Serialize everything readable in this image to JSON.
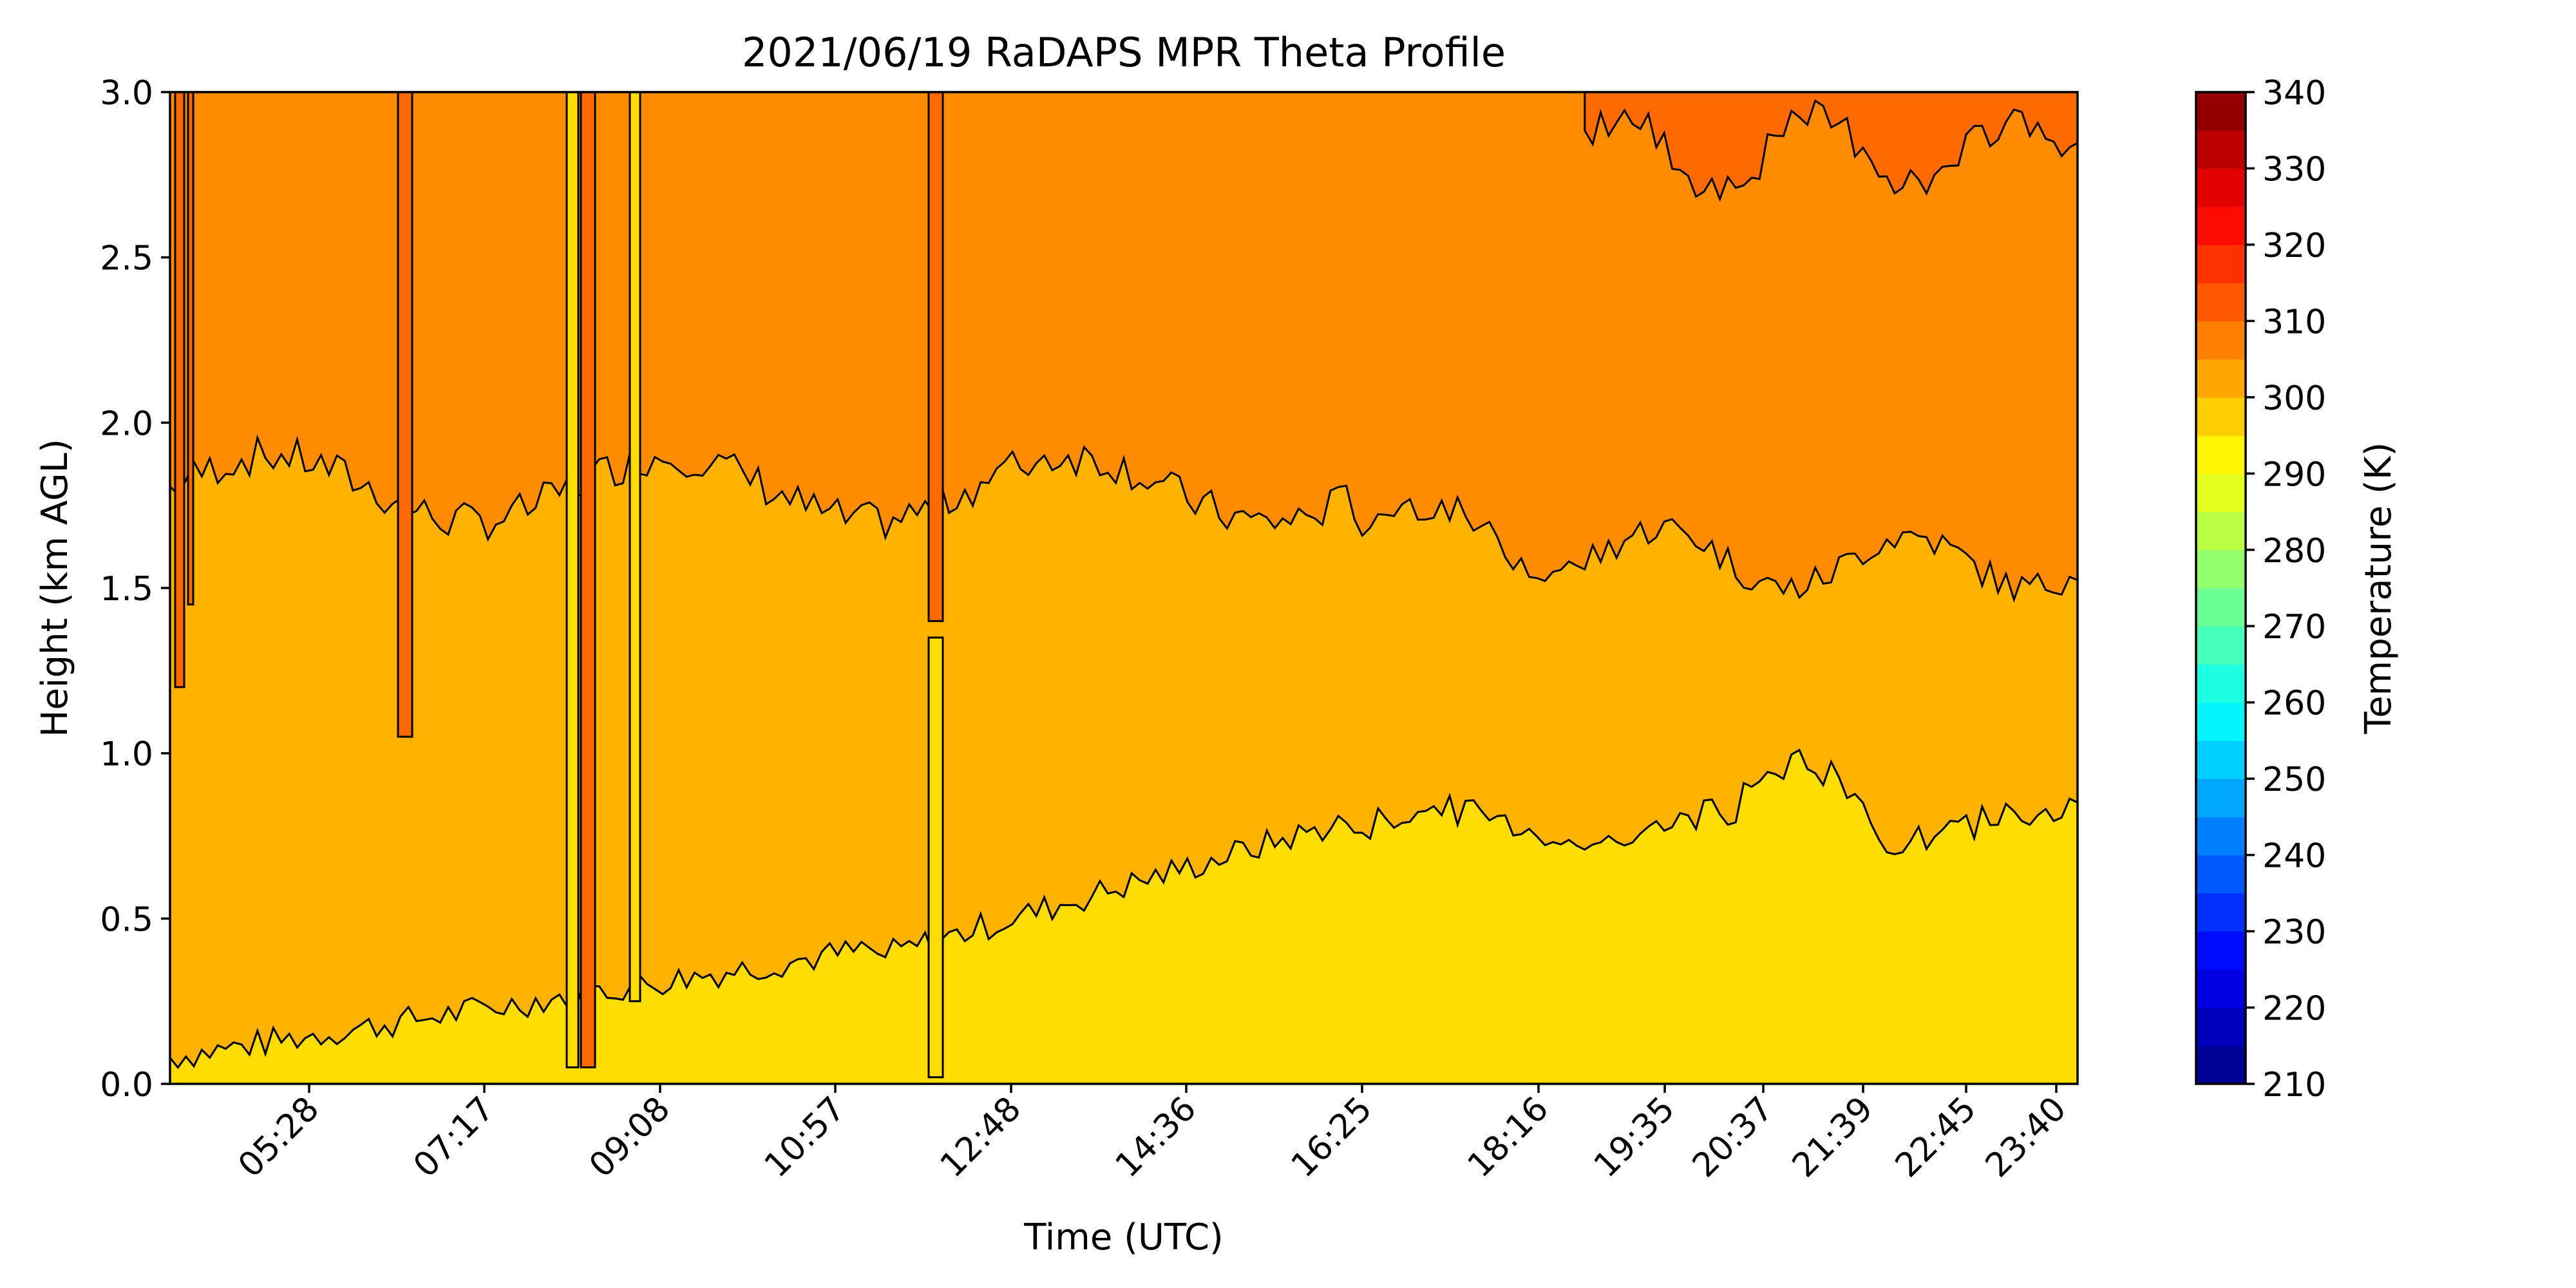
{
  "chart_data": {
    "type": "heatmap",
    "subtype": "filled-contour",
    "title": "2021/06/19 RaDAPS MPR Theta Profile",
    "xlabel": "Time (UTC)",
    "ylabel": "Height (km AGL)",
    "ylim": [
      0,
      3.0
    ],
    "yticks": [
      "0.0",
      "0.5",
      "1.0",
      "1.5",
      "2.0",
      "2.5",
      "3.0"
    ],
    "xticks": [
      "05:28",
      "07:17",
      "09:08",
      "10:57",
      "12:48",
      "14:36",
      "16:25",
      "18:16",
      "19:35",
      "20:37",
      "21:39",
      "22:45",
      "23:40"
    ],
    "colorbar": {
      "label": "Temperature (K)",
      "range": [
        210,
        340
      ],
      "step": 5,
      "ticks": [
        "210",
        "220",
        "230",
        "240",
        "250",
        "260",
        "270",
        "280",
        "290",
        "300",
        "310",
        "320",
        "330",
        "340"
      ],
      "colormap": "jet"
    },
    "series": [
      {
        "level_range": [
          295,
          300
        ],
        "color": "#ffdd00"
      },
      {
        "level_range": [
          300,
          305
        ],
        "color": "#ffb300"
      },
      {
        "level_range": [
          305,
          310
        ],
        "color": "#ff8c00"
      },
      {
        "level_range": [
          310,
          315
        ],
        "color": "#ff6a00"
      }
    ],
    "grid": false,
    "legend": "colorbar-right"
  }
}
